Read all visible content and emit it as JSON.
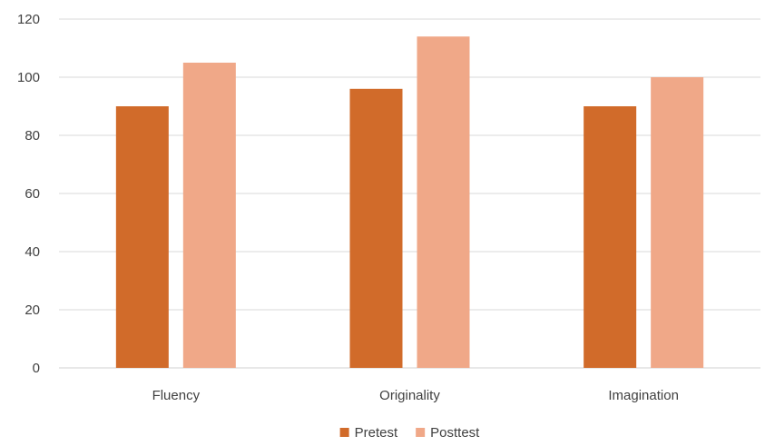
{
  "chart_data": {
    "type": "bar",
    "title": "",
    "xlabel": "",
    "ylabel": "",
    "categories": [
      "Fluency",
      "Originality",
      "Imagination"
    ],
    "series": [
      {
        "name": "Pretest",
        "values": [
          90,
          96,
          90
        ],
        "color": "#D16B2A"
      },
      {
        "name": "Posttest",
        "values": [
          105,
          114,
          100
        ],
        "color": "#F0A888"
      }
    ],
    "ylim": [
      0,
      120
    ],
    "yticks": [
      0,
      20,
      40,
      60,
      80,
      100,
      120
    ],
    "grid": true,
    "legend_position": "bottom",
    "colors": {
      "gridline": "#D9D9D9",
      "axis_text": "#404040"
    }
  }
}
